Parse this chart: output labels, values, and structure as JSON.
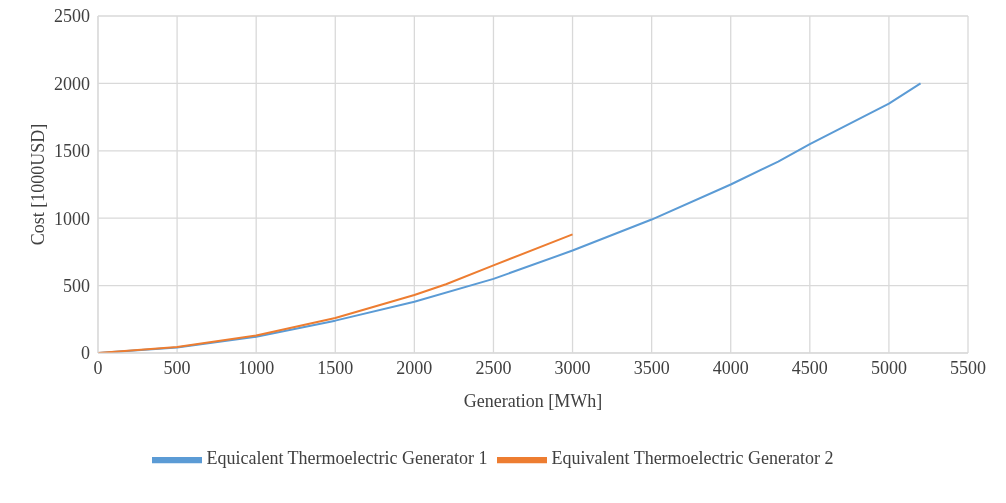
{
  "chart_data": {
    "type": "line",
    "xlabel": "Generation [MWh]",
    "ylabel": "Cost [1000USD]",
    "xlim": [
      0,
      5500
    ],
    "xticks": [
      0,
      500,
      1000,
      1500,
      2000,
      2500,
      3000,
      3500,
      4000,
      4500,
      5000,
      5500
    ],
    "ylim": [
      0,
      2500
    ],
    "yticks": [
      0,
      500,
      1000,
      1500,
      2000,
      2500
    ],
    "grid": true,
    "legend": "bottom",
    "marker": "none",
    "line_style": "solid",
    "series": [
      {
        "name": "Equicalent Thermoelectric Generator 1",
        "color": "#5b9bd5",
        "x": [
          0,
          500,
          1000,
          1500,
          2000,
          2500,
          3000,
          3500,
          4000,
          4300,
          4500,
          5000,
          5200
        ],
        "values": [
          0,
          40,
          120,
          240,
          380,
          550,
          760,
          990,
          1250,
          1420,
          1550,
          1850,
          2000
        ]
      },
      {
        "name": "Equivalent Thermoelectric Generator 2",
        "color": "#ed7d31",
        "x": [
          0,
          500,
          1000,
          1500,
          2000,
          2200,
          2500,
          3000
        ],
        "values": [
          0,
          45,
          130,
          260,
          430,
          510,
          650,
          880
        ]
      }
    ]
  }
}
